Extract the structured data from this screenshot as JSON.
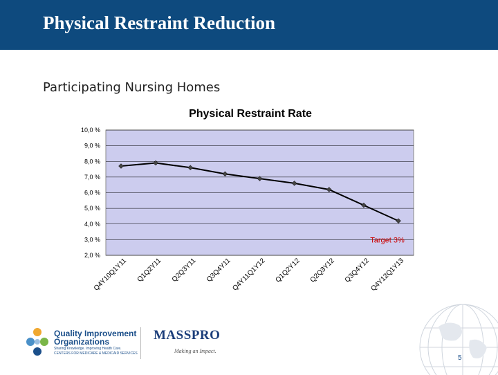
{
  "header": {
    "title": "Physical Restraint Reduction",
    "subtitle": "Participating Nursing Homes"
  },
  "chart_data": {
    "type": "line",
    "title": "Physical Restraint Rate",
    "categories": [
      "Q4Y10Q1Y11",
      "Q1Q2Y11",
      "Q2Q3Y11",
      "Q3Q4Y11",
      "Q4Y11Q1Y12",
      "Q1Q2Y12",
      "Q2Q3Y12",
      "Q3Q4Y12",
      "Q4Y12Q1Y13"
    ],
    "series": [
      {
        "values": [
          7.7,
          7.9,
          7.6,
          7.2,
          6.9,
          6.6,
          6.2,
          5.2,
          4.2
        ]
      }
    ],
    "ylim": [
      2.0,
      10.0
    ],
    "yticks": [
      10.0,
      9.0,
      8.0,
      7.0,
      6.0,
      5.0,
      4.0,
      3.0,
      2.0
    ],
    "ytick_labels": [
      "10,0 %",
      "9,0 %",
      "8,0 %",
      "7,0 %",
      "6,0 %",
      "5,0 %",
      "4,0 %",
      "3,0 %",
      "2,0 %"
    ],
    "target_value": 3.0,
    "target_label": "Target 3%",
    "grid": true,
    "colors": {
      "plot_bg": "#ccccee",
      "line": "#000000",
      "marker": "#444444",
      "target": "#cc0000"
    }
  },
  "footer": {
    "qio_name_line1": "Quality Improvement",
    "qio_name_line2": "Organizations",
    "qio_tagline1": "Sharing Knowledge. Improving Health Care.",
    "qio_tagline2": "CENTERS FOR MEDICARE & MEDICAID SERVICES",
    "masspro": "MASSPRO",
    "masspro_tagline": "Making an Impact.",
    "page_number": "5"
  }
}
